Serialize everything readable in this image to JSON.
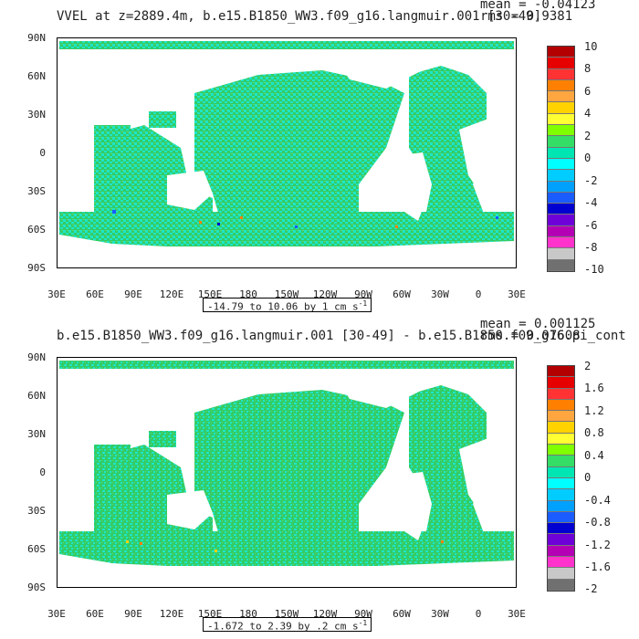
{
  "panels": [
    {
      "title": "VVEL at z=2889.4m, b.e15.B1850_WW3.f09_g16.langmuir.001 [30-49]",
      "mean": "mean = -0.04123",
      "rms": "rms = 0.9381",
      "range_text": "-14.79 to 10.06 by 1 cm s",
      "unit_exp": "-1",
      "colorbar_labels": [
        "10",
        "8",
        "6",
        "4",
        "2",
        "0",
        "-2",
        "-4",
        "-6",
        "-8",
        "-10"
      ]
    },
    {
      "title": "b.e15.B1850_WW3.f09_g16.langmuir.001 [30-49] - b.e15.B1850.f09_g16.pi_cont",
      "mean": "mean = 0.001125",
      "rms": "rms = 0.07608",
      "range_text": "-1.672 to 2.39 by .2 cm s",
      "unit_exp": "-1",
      "colorbar_labels": [
        "2",
        "1.6",
        "1.2",
        "0.8",
        "0.4",
        "0",
        "-0.4",
        "-0.8",
        "-1.2",
        "-1.6",
        "-2"
      ]
    }
  ],
  "lat_labels": [
    "90N",
    "60N",
    "30N",
    "0",
    "30S",
    "60S",
    "90S"
  ],
  "lon_labels": [
    "30E",
    "60E",
    "90E",
    "120E",
    "150E",
    "180",
    "150W",
    "120W",
    "90W",
    "60W",
    "30W",
    "0",
    "30E"
  ],
  "colorbar_colors": [
    "#b30000",
    "#e60000",
    "#ff3333",
    "#ff8000",
    "#ffa640",
    "#ffd200",
    "#ffff33",
    "#80ff00",
    "#33dd66",
    "#00e6b3",
    "#00ffff",
    "#00ccff",
    "#00a0ff",
    "#1a5cff",
    "#0000d0",
    "#6e00d8",
    "#b400b4",
    "#ff33cc",
    "#c8c8c8",
    "#707070"
  ],
  "colors": {
    "ocean_main": "#33cc66",
    "ocean_alt": "#1ee6c8",
    "land": "#ffffff"
  }
}
